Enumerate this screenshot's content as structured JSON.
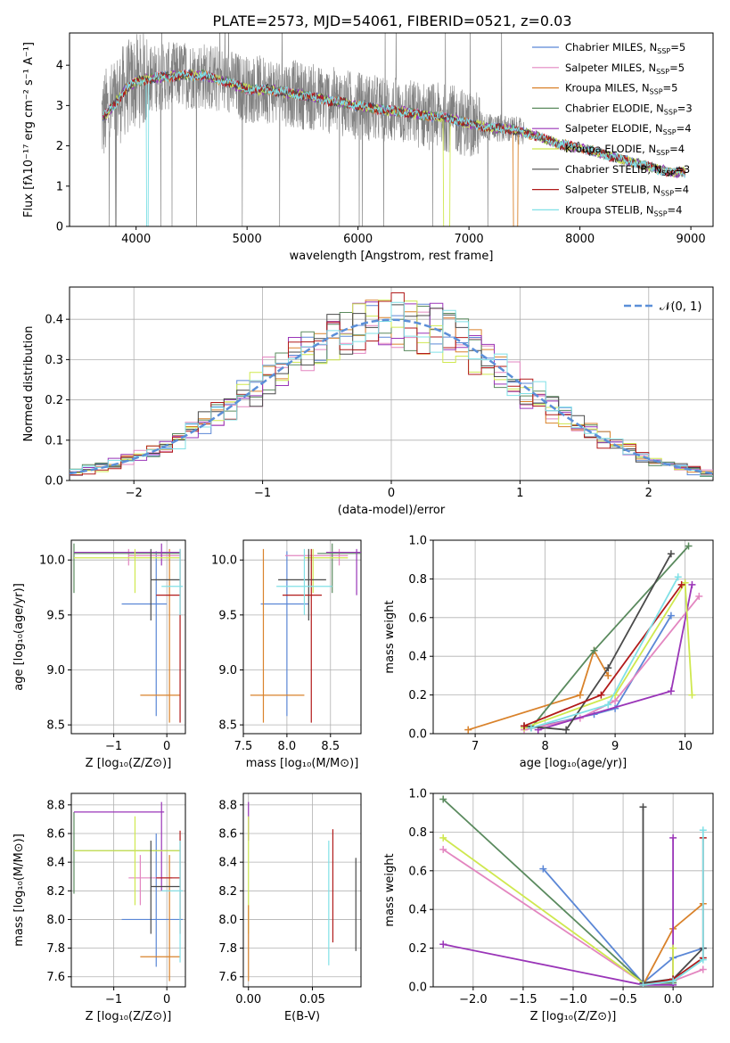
{
  "colors": {
    "chab_miles": "#5b87d6",
    "salp_miles": "#e386c0",
    "krou_miles": "#d9822b",
    "chab_elodie": "#5a8a5e",
    "salp_elodie": "#9a35b8",
    "krou_elodie": "#cfe84f",
    "chab_stelib": "#4a4a4a",
    "salp_stelib": "#b11a1a",
    "krou_stelib": "#80e0e6",
    "data": "#808080",
    "gauss": "#5b8fd8",
    "grid": "#b0b0b0"
  },
  "chart_data": [
    {
      "id": "spectrum",
      "type": "line",
      "title": "PLATE=2573, MJD=54061, FIBERID=0521, z=0.03",
      "xlabel": "wavelength [Angstrom, rest frame]",
      "ylabel": "Flux [fλ10⁻¹⁷ erg cm⁻² s⁻¹ A⁻¹]",
      "xlim": [
        3400,
        9200
      ],
      "ylim": [
        0,
        4.8
      ],
      "xticks": [
        "4000",
        "5000",
        "6000",
        "7000",
        "8000",
        "9000"
      ],
      "yticks": [
        "0",
        "1",
        "2",
        "3",
        "4"
      ],
      "grid": false,
      "legend": "top-right",
      "continuum": {
        "x": [
          3700,
          3800,
          3900,
          4000,
          4200,
          4400,
          4600,
          4800,
          5000,
          5200,
          5400,
          5600,
          5800,
          6000,
          6200,
          6400,
          6600,
          6800,
          7000,
          7200,
          7400,
          7600,
          7800,
          8000,
          8200,
          8400,
          8600,
          8800
        ],
        "y": [
          2.7,
          3.0,
          3.4,
          3.6,
          3.7,
          3.75,
          3.75,
          3.6,
          3.4,
          3.4,
          3.3,
          3.2,
          3.1,
          3.0,
          2.9,
          2.85,
          2.75,
          2.7,
          2.55,
          2.45,
          2.4,
          2.25,
          2.05,
          1.95,
          1.8,
          1.65,
          1.5,
          1.35
        ]
      },
      "legend_entries": [
        {
          "key": "chab_miles",
          "label": "Chabrier MILES, N",
          "sub": "SSP",
          "suffix": "=5"
        },
        {
          "key": "salp_miles",
          "label": "Salpeter MILES, N",
          "sub": "SSP",
          "suffix": "=5"
        },
        {
          "key": "krou_miles",
          "label": "Kroupa MILES, N",
          "sub": "SSP",
          "suffix": "=5"
        },
        {
          "key": "chab_elodie",
          "label": "Chabrier ELODIE, N",
          "sub": "SSP",
          "suffix": "=3"
        },
        {
          "key": "salp_elodie",
          "label": "Salpeter ELODIE, N",
          "sub": "SSP",
          "suffix": "=4"
        },
        {
          "key": "krou_elodie",
          "label": "Kroupa ELODIE, N",
          "sub": "SSP",
          "suffix": "=4"
        },
        {
          "key": "chab_stelib",
          "label": "Chabrier STELIB, N",
          "sub": "SSP",
          "suffix": "=3"
        },
        {
          "key": "salp_stelib",
          "label": "Salpeter STELIB, N",
          "sub": "SSP",
          "suffix": "=4"
        },
        {
          "key": "krou_stelib",
          "label": "Kroupa STELIB, N",
          "sub": "SSP",
          "suffix": "=4"
        }
      ]
    },
    {
      "id": "hist",
      "type": "line",
      "xlabel": "(data-model)/error",
      "ylabel": "Normed distribution",
      "xlim": [
        -2.5,
        2.5
      ],
      "ylim": [
        0,
        0.48
      ],
      "xticks": [
        "−2",
        "−1",
        "0",
        "1",
        "2"
      ],
      "yticks": [
        "0.0",
        "0.1",
        "0.2",
        "0.3",
        "0.4"
      ],
      "grid": true,
      "legend": "top-right",
      "legend_label": "𝒩(0, 1)",
      "bin_width": 0.1
    },
    {
      "id": "age_z",
      "type": "scatter",
      "xlabel": "Z [log₁₀(Z/Z⊙)]",
      "ylabel": "age  [log₁₀(age/yr)]",
      "xlim": [
        -1.8,
        0.35
      ],
      "ylim": [
        8.42,
        10.18
      ],
      "xticks": [
        "−1",
        "0"
      ],
      "yticks": [
        "8.5",
        "9.0",
        "9.5",
        "10.0"
      ],
      "grid": true
    },
    {
      "id": "age_mass",
      "type": "scatter",
      "xlabel": "mass [log₁₀(M/M⊙)]",
      "xlim": [
        7.5,
        8.85
      ],
      "ylim": [
        8.42,
        10.18
      ],
      "xticks": [
        "7.5",
        "8.0",
        "8.5"
      ],
      "yticks": [
        "8.5",
        "9.0",
        "9.5",
        "10.0"
      ],
      "grid": true
    },
    {
      "id": "mw_age",
      "type": "line",
      "xlabel": "age  [log₁₀(age/yr)]",
      "ylabel": "mass weight",
      "xlim": [
        6.4,
        10.4
      ],
      "ylim": [
        0,
        1
      ],
      "xticks": [
        "7",
        "8",
        "9",
        "10"
      ],
      "yticks": [
        "0.0",
        "0.2",
        "0.4",
        "0.6",
        "0.8",
        "1.0"
      ],
      "grid": true,
      "series": [
        {
          "key": "chab_miles",
          "x": [
            7.8,
            8.7,
            9.0,
            9.8
          ],
          "y": [
            0.03,
            0.1,
            0.13,
            0.61
          ]
        },
        {
          "key": "salp_miles",
          "x": [
            7.7,
            8.5,
            9.0,
            10.2
          ],
          "y": [
            0.02,
            0.08,
            0.17,
            0.71
          ]
        },
        {
          "key": "krou_miles",
          "x": [
            6.9,
            8.5,
            8.7,
            8.9
          ],
          "y": [
            0.02,
            0.2,
            0.43,
            0.3
          ]
        },
        {
          "key": "chab_elodie",
          "x": [
            7.8,
            8.7,
            10.05
          ],
          "y": [
            0.03,
            0.43,
            0.97
          ]
        },
        {
          "key": "salp_elodie",
          "x": [
            7.9,
            9.8,
            10.1
          ],
          "y": [
            0.02,
            0.22,
            0.77
          ]
        },
        {
          "key": "krou_elodie",
          "x": [
            7.7,
            9.0,
            10.0,
            10.1
          ],
          "y": [
            0.03,
            0.2,
            0.78,
            0.2
          ]
        },
        {
          "key": "chab_stelib",
          "x": [
            7.7,
            8.3,
            8.9,
            9.8
          ],
          "y": [
            0.04,
            0.02,
            0.34,
            0.93
          ]
        },
        {
          "key": "salp_stelib",
          "x": [
            7.7,
            8.8,
            9.95
          ],
          "y": [
            0.04,
            0.2,
            0.77
          ]
        },
        {
          "key": "krou_stelib",
          "x": [
            7.8,
            8.9,
            9.9
          ],
          "y": [
            0.03,
            0.15,
            0.81
          ]
        }
      ]
    },
    {
      "id": "mass_z",
      "type": "scatter",
      "xlabel": "Z [log₁₀(Z/Z⊙)]",
      "ylabel": "mass [log₁₀(M/M⊙)]",
      "xlim": [
        -1.8,
        0.35
      ],
      "ylim": [
        7.53,
        8.88
      ],
      "xticks": [
        "−1",
        "0"
      ],
      "yticks": [
        "7.6",
        "7.8",
        "8.0",
        "8.2",
        "8.4",
        "8.6",
        "8.8"
      ],
      "grid": true
    },
    {
      "id": "mass_ebv",
      "type": "scatter",
      "xlabel": "E(B-V)",
      "xlim": [
        -0.004,
        0.088
      ],
      "ylim": [
        7.53,
        8.88
      ],
      "xticks": [
        "0.00",
        "0.05"
      ],
      "yticks": [
        "7.6",
        "7.8",
        "8.0",
        "8.2",
        "8.4",
        "8.6",
        "8.8"
      ],
      "grid": true
    },
    {
      "id": "mw_z",
      "type": "line",
      "xlabel": "Z [log₁₀(Z/Z⊙)]",
      "ylabel": "mass weight",
      "xlim": [
        -2.4,
        0.4
      ],
      "ylim": [
        0,
        1
      ],
      "xticks": [
        "−2.0",
        "−1.5",
        "−1.0",
        "−0.5",
        "0.0"
      ],
      "yticks": [
        "0.0",
        "0.2",
        "0.4",
        "0.6",
        "0.8",
        "1.0"
      ],
      "grid": true,
      "series": [
        {
          "key": "chab_miles",
          "x": [
            -1.3,
            -0.3,
            0.0,
            0.3
          ],
          "y": [
            0.61,
            0.02,
            0.15,
            0.2
          ]
        },
        {
          "key": "salp_miles",
          "x": [
            -2.3,
            -0.3,
            0.0,
            0.3
          ],
          "y": [
            0.71,
            0.02,
            0.03,
            0.09
          ]
        },
        {
          "key": "krou_miles",
          "x": [
            -0.3,
            0.0,
            0.3
          ],
          "y": [
            0.01,
            0.3,
            0.43
          ]
        },
        {
          "key": "chab_elodie",
          "x": [
            -2.3,
            -0.3,
            0.0
          ],
          "y": [
            0.97,
            0.02,
            0.02
          ]
        },
        {
          "key": "salp_elodie",
          "x": [
            -2.3,
            -0.3,
            0.0,
            0.0
          ],
          "y": [
            0.22,
            0.01,
            0.01,
            0.77
          ]
        },
        {
          "key": "krou_elodie",
          "x": [
            -2.3,
            -0.3,
            0.0,
            0.0
          ],
          "y": [
            0.77,
            0.02,
            0.03,
            0.2
          ]
        },
        {
          "key": "chab_stelib",
          "x": [
            -0.3,
            -0.3,
            0.0,
            0.3
          ],
          "y": [
            0.93,
            0.02,
            0.04,
            0.2
          ]
        },
        {
          "key": "salp_stelib",
          "x": [
            -0.3,
            0.0,
            0.3,
            0.3
          ],
          "y": [
            0.01,
            0.04,
            0.15,
            0.77
          ]
        },
        {
          "key": "krou_stelib",
          "x": [
            -0.3,
            0.0,
            0.3,
            0.3
          ],
          "y": [
            0.01,
            0.03,
            0.14,
            0.81
          ]
        }
      ]
    }
  ]
}
